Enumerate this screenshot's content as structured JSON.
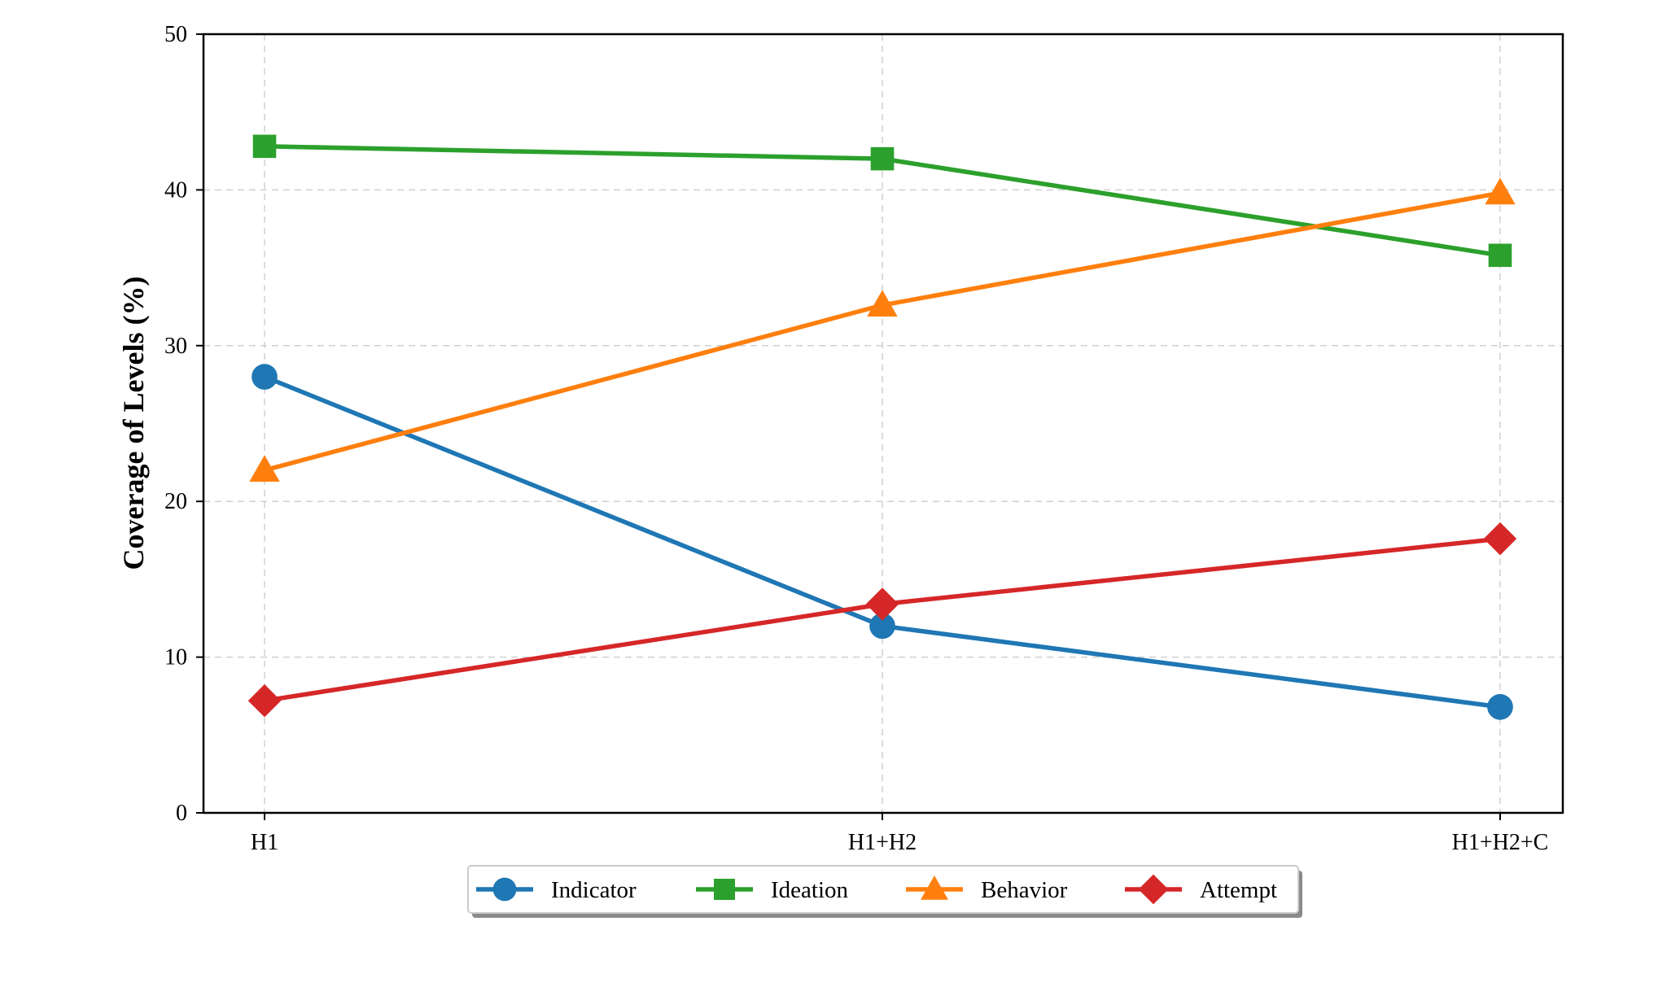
{
  "chart_data": {
    "type": "line",
    "title": "",
    "xlabel": "",
    "ylabel": "Coverage of Levels (%)",
    "categories": [
      "H1",
      "H1+H2",
      "H1+H2+C"
    ],
    "ylim": [
      0,
      50
    ],
    "yticks": [
      "0",
      "10",
      "20",
      "30",
      "40",
      "50"
    ],
    "grid": true,
    "legend_position": "bottom-center",
    "series": [
      {
        "name": "Indicator",
        "values": [
          28.0,
          12.0,
          6.8
        ],
        "color": "#1f77b4",
        "marker": "circle"
      },
      {
        "name": "Ideation",
        "values": [
          42.8,
          42.0,
          35.8
        ],
        "color": "#2ca02c",
        "marker": "square"
      },
      {
        "name": "Behavior",
        "values": [
          22.0,
          32.6,
          39.8
        ],
        "color": "#ff7f0e",
        "marker": "triangle"
      },
      {
        "name": "Attempt",
        "values": [
          7.2,
          13.4,
          17.6
        ],
        "color": "#d62728",
        "marker": "diamond"
      }
    ]
  }
}
